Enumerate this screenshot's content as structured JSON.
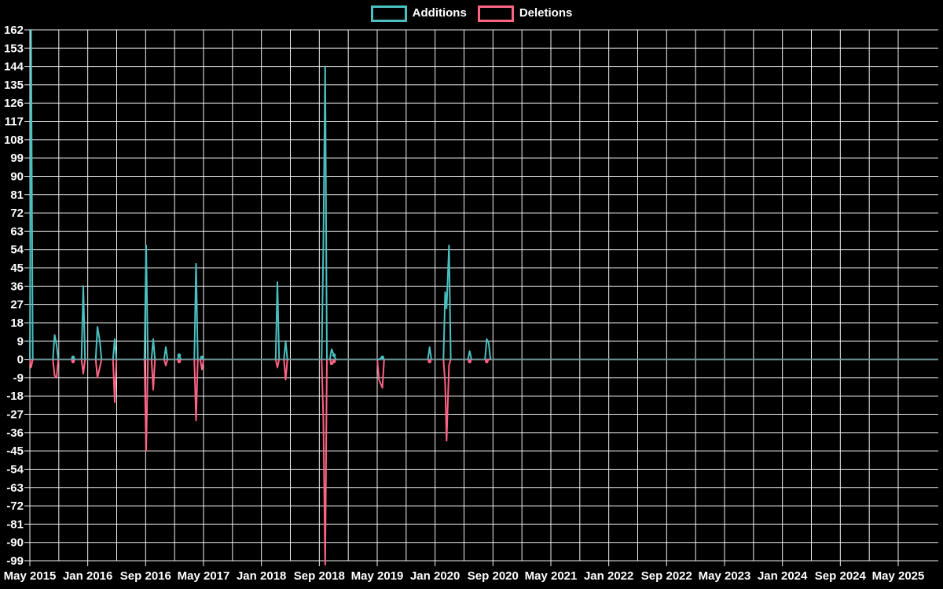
{
  "legend": {
    "items": [
      {
        "label": "Additions",
        "color": "#4bc0c0"
      },
      {
        "label": "Deletions",
        "color": "#ff6384"
      }
    ]
  },
  "chart_data": {
    "type": "line",
    "title": "",
    "background_color": "#000000",
    "grid_color": "#f2f2f2",
    "zero_line_color": "#6f989c",
    "text_color": "#ffffff",
    "legend_position": "top",
    "grid": "on",
    "y_axis": {
      "min": -99,
      "max": 162,
      "step": 9,
      "tick_labels": [
        "162",
        "153",
        "144",
        "135",
        "126",
        "117",
        "108",
        "99",
        "90",
        "81",
        "72",
        "63",
        "54",
        "45",
        "36",
        "27",
        "18",
        "9",
        "0",
        "-9",
        "-18",
        "-27",
        "-36",
        "-45",
        "-54",
        "-63",
        "-72",
        "-81",
        "-90",
        "-99"
      ]
    },
    "x_axis": {
      "tick_labels": [
        "May 2015",
        "Jan 2016",
        "Sep 2016",
        "May 2017",
        "Jan 2018",
        "Sep 2018",
        "May 2019",
        "Jan 2020",
        "Sep 2020",
        "May 2021",
        "Jan 2022",
        "Sep 2022",
        "May 2023",
        "Jan 2024",
        "Sep 2024",
        "May 2025"
      ],
      "months_per_gridline": 4,
      "months_per_label": 8,
      "start": "May 2015",
      "last_gridline": "May 2025",
      "data_end_month_offset": 125.5
    },
    "series": [
      {
        "name": "Additions",
        "color": "#4bc0c0",
        "key": "additions"
      },
      {
        "name": "Deletions",
        "color": "#ff6384",
        "key": "deletions"
      }
    ],
    "events": [
      {
        "month_offset": 0.16,
        "date": "May 2015",
        "additions": 162,
        "deletions": -4
      },
      {
        "month_offset": 3.42,
        "date": "Aug 2015",
        "additions": 12,
        "deletions": -8
      },
      {
        "month_offset": 3.69,
        "date": "Aug 2015",
        "additions": 7,
        "deletions": -9
      },
      {
        "month_offset": 5.97,
        "date": "Nov 2015",
        "additions": 1,
        "deletions": -1
      },
      {
        "month_offset": 7.38,
        "date": "Dec 2015",
        "additions": 36,
        "deletions": -7
      },
      {
        "month_offset": 9.34,
        "date": "Feb 2016",
        "additions": 16,
        "deletions": -9
      },
      {
        "month_offset": 9.66,
        "date": "Feb 2016",
        "additions": 9,
        "deletions": -4
      },
      {
        "month_offset": 11.73,
        "date": "Apr 2016",
        "additions": 10,
        "deletions": -21
      },
      {
        "month_offset": 16.07,
        "date": "Sep 2016",
        "additions": 56,
        "deletions": -45
      },
      {
        "month_offset": 17.05,
        "date": "Oct 2016",
        "additions": 10,
        "deletions": -15
      },
      {
        "month_offset": 18.79,
        "date": "Nov 2016",
        "additions": 6,
        "deletions": -3
      },
      {
        "month_offset": 20.63,
        "date": "Jan 2017",
        "additions": 2,
        "deletions": -1
      },
      {
        "month_offset": 22.97,
        "date": "Mar 2017",
        "additions": 47,
        "deletions": -30
      },
      {
        "month_offset": 23.78,
        "date": "Apr 2017",
        "additions": 1,
        "deletions": -5
      },
      {
        "month_offset": 34.21,
        "date": "Mar 2018",
        "additions": 38,
        "deletions": -4
      },
      {
        "month_offset": 35.35,
        "date": "Apr 2018",
        "additions": 9,
        "deletions": -10
      },
      {
        "month_offset": 40.56,
        "date": "Sep 2018",
        "additions": 57,
        "deletions": -30
      },
      {
        "month_offset": 40.81,
        "date": "Sep 2018",
        "additions": 144,
        "deletions": -101
      },
      {
        "month_offset": 41.7,
        "date": "Oct 2018",
        "additions": 5,
        "deletions": -2
      },
      {
        "month_offset": 42.03,
        "date": "Oct 2018",
        "additions": 2,
        "deletions": -1
      },
      {
        "month_offset": 48.25,
        "date": "May 2019",
        "additions": 0,
        "deletions": -10
      },
      {
        "month_offset": 48.72,
        "date": "May 2019",
        "additions": 1,
        "deletions": -14
      },
      {
        "month_offset": 55.24,
        "date": "Dec 2019",
        "additions": 6,
        "deletions": -1
      },
      {
        "month_offset": 57.39,
        "date": "Feb 2020",
        "additions": 33,
        "deletions": -12
      },
      {
        "month_offset": 57.59,
        "date": "Feb 2020",
        "additions": 25,
        "deletions": -40
      },
      {
        "month_offset": 57.93,
        "date": "Mar 2020",
        "additions": 56,
        "deletions": -3
      },
      {
        "month_offset": 60.78,
        "date": "May 2020",
        "additions": 4,
        "deletions": -1
      },
      {
        "month_offset": 63.14,
        "date": "Aug 2020",
        "additions": 10,
        "deletions": -1
      },
      {
        "month_offset": 63.41,
        "date": "Aug 2020",
        "additions": 8,
        "deletions": 0
      }
    ]
  }
}
